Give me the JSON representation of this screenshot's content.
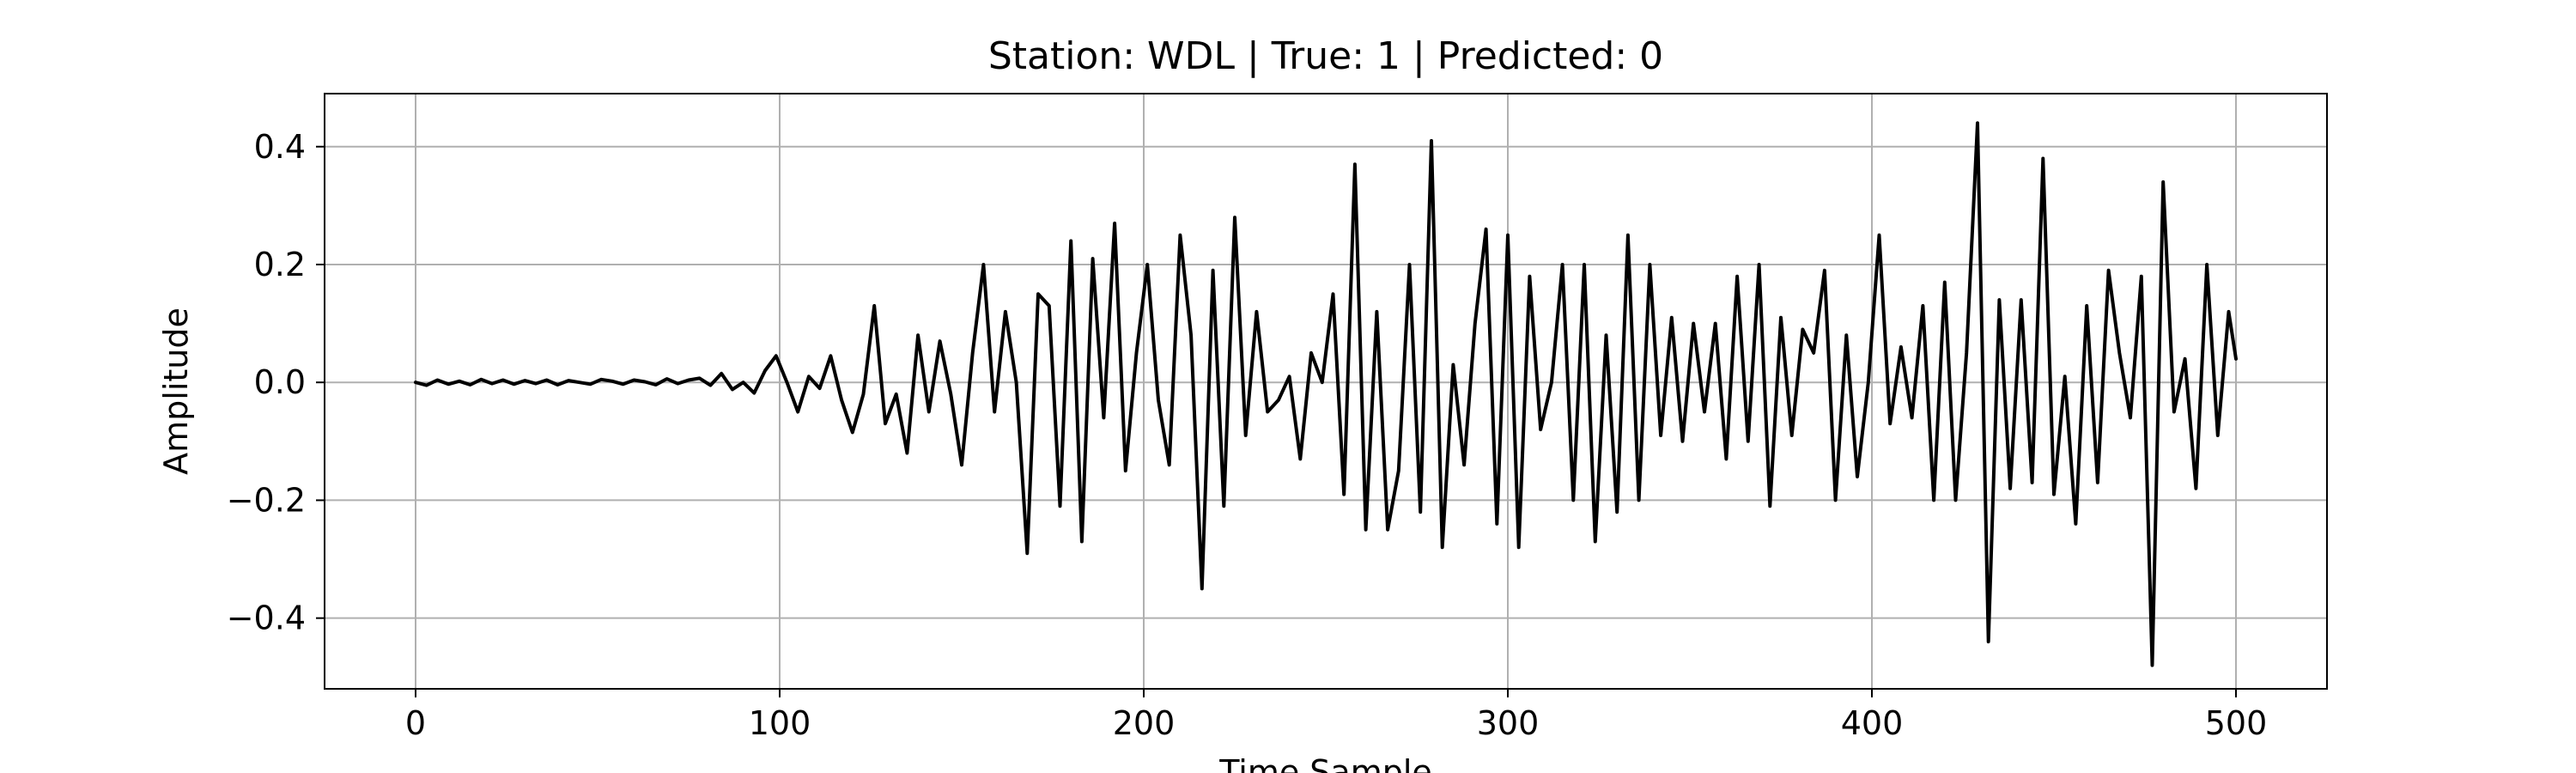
{
  "chart_data": {
    "type": "line",
    "title": "Station: WDL | True: 1 | Predicted: 0",
    "xlabel": "Time Sample",
    "ylabel": "Amplitude",
    "xlim": [
      -25,
      525
    ],
    "ylim": [
      -0.52,
      0.49
    ],
    "xticks": [
      0,
      100,
      200,
      300,
      400,
      500
    ],
    "yticks": [
      0.4,
      0.2,
      0.0,
      -0.2,
      -0.4
    ],
    "xtick_labels": [
      "0",
      "100",
      "200",
      "300",
      "400",
      "500"
    ],
    "ytick_labels": [
      "0.4",
      "0.2",
      "0.0",
      "−0.2",
      "−0.4"
    ],
    "grid": true,
    "line_color": "#000000",
    "series": [
      {
        "x": [
          0,
          3,
          6,
          9,
          12,
          15,
          18,
          21,
          24,
          27,
          30,
          33,
          36,
          39,
          42,
          45,
          48,
          51,
          54,
          57,
          60,
          63,
          66,
          69,
          72,
          75,
          78,
          81,
          84,
          87,
          90,
          93,
          96,
          99,
          102,
          105,
          108,
          111,
          114,
          117,
          120,
          123,
          126,
          129,
          132,
          135,
          138,
          141,
          144,
          147,
          150,
          153,
          156,
          159,
          162,
          165,
          168,
          171,
          174,
          177,
          180,
          183,
          186,
          189,
          192,
          195,
          198,
          201,
          204,
          207,
          210,
          213,
          216,
          219,
          222,
          225,
          228,
          231,
          234,
          237,
          240,
          243,
          246,
          249,
          252,
          255,
          258,
          261,
          264,
          267,
          270,
          273,
          276,
          279,
          282,
          285,
          288,
          291,
          294,
          297,
          300,
          303,
          306,
          309,
          312,
          315,
          318,
          321,
          324,
          327,
          330,
          333,
          336,
          339,
          342,
          345,
          348,
          351,
          354,
          357,
          360,
          363,
          366,
          369,
          372,
          375,
          378,
          381,
          384,
          387,
          390,
          393,
          396,
          399,
          402,
          405,
          408,
          411,
          414,
          417,
          420,
          423,
          426,
          429,
          432,
          435,
          438,
          441,
          444,
          447,
          450,
          453,
          456,
          459,
          462,
          465,
          468,
          471,
          474,
          477,
          480,
          483,
          486,
          489,
          492,
          495,
          498,
          500
        ],
        "y": [
          0.0,
          -0.005,
          0.004,
          -0.003,
          0.002,
          -0.004,
          0.005,
          -0.002,
          0.004,
          -0.003,
          0.003,
          -0.002,
          0.004,
          -0.004,
          0.003,
          0.0,
          -0.003,
          0.005,
          0.002,
          -0.003,
          0.004,
          0.001,
          -0.004,
          0.006,
          -0.002,
          0.004,
          0.007,
          -0.005,
          0.015,
          -0.012,
          0.0,
          -0.018,
          0.02,
          0.045,
          0.0,
          -0.05,
          0.01,
          -0.01,
          0.045,
          -0.03,
          -0.085,
          -0.02,
          0.13,
          -0.07,
          -0.02,
          -0.12,
          0.08,
          -0.05,
          0.07,
          -0.02,
          -0.14,
          0.05,
          0.2,
          -0.05,
          0.12,
          0.0,
          -0.29,
          0.15,
          0.13,
          -0.21,
          0.24,
          -0.27,
          0.21,
          -0.06,
          0.27,
          -0.15,
          0.05,
          0.2,
          -0.03,
          -0.14,
          0.25,
          0.08,
          -0.35,
          0.19,
          -0.21,
          0.28,
          -0.09,
          0.12,
          -0.05,
          -0.03,
          0.01,
          -0.13,
          0.05,
          0.0,
          0.15,
          -0.19,
          0.37,
          -0.25,
          0.12,
          -0.25,
          -0.15,
          0.2,
          -0.22,
          0.41,
          -0.28,
          0.03,
          -0.14,
          0.1,
          0.26,
          -0.24,
          0.25,
          -0.28,
          0.18,
          -0.08,
          0.0,
          0.2,
          -0.2,
          0.2,
          -0.27,
          0.08,
          -0.22,
          0.25,
          -0.2,
          0.2,
          -0.09,
          0.11,
          -0.1,
          0.1,
          -0.05,
          0.1,
          -0.13,
          0.18,
          -0.1,
          0.2,
          -0.21,
          0.11,
          -0.09,
          0.09,
          0.05,
          0.19,
          -0.2,
          0.08,
          -0.16,
          0.0,
          0.25,
          -0.07,
          0.06,
          -0.06,
          0.13,
          -0.2,
          0.17,
          -0.2,
          0.05,
          0.44,
          -0.44,
          0.14,
          -0.18,
          0.14,
          -0.17,
          0.38,
          -0.19,
          0.01,
          -0.24,
          0.13,
          -0.17,
          0.19,
          0.05,
          -0.06,
          0.18,
          -0.48,
          0.34,
          -0.05,
          0.04,
          -0.18,
          0.2,
          -0.09,
          0.12,
          0.04
        ],
        "note": ""
      }
    ]
  }
}
